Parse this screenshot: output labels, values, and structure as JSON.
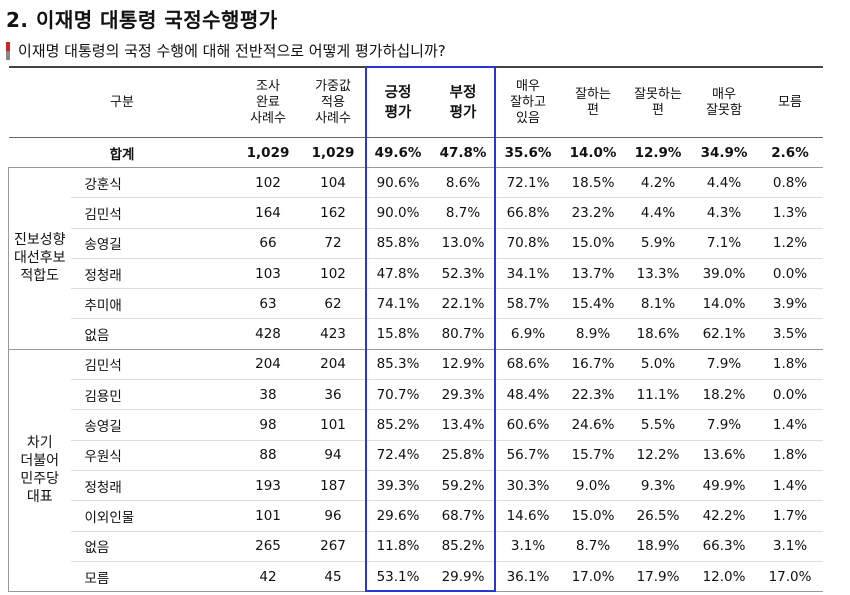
{
  "title": "2. 이재명 대통령 국정수행평가",
  "question": "이재명 대통령의 국정 수행에 대해 전반적으로 어떻게 평가하십니까?",
  "table": {
    "header": [
      "구분",
      "조사\n완료\n사례수",
      "가중값\n적용\n사례수",
      "긍정\n평가",
      "부정\n평가",
      "매우\n잘하고\n있음",
      "잘하는\n편",
      "잘못하는\n편",
      "매우\n잘못함",
      "모름"
    ],
    "total": {
      "label": "합계",
      "values": [
        "1,029",
        "1,029",
        "49.6%",
        "47.8%",
        "35.6%",
        "14.0%",
        "12.9%",
        "34.9%",
        "2.6%"
      ]
    },
    "groups": [
      {
        "label": "진보성향\n대선후보\n적합도",
        "rows": [
          {
            "name": "강훈식",
            "values": [
              "102",
              "104",
              "90.6%",
              "8.6%",
              "72.1%",
              "18.5%",
              "4.2%",
              "4.4%",
              "0.8%"
            ]
          },
          {
            "name": "김민석",
            "values": [
              "164",
              "162",
              "90.0%",
              "8.7%",
              "66.8%",
              "23.2%",
              "4.4%",
              "4.3%",
              "1.3%"
            ]
          },
          {
            "name": "송영길",
            "values": [
              "66",
              "72",
              "85.8%",
              "13.0%",
              "70.8%",
              "15.0%",
              "5.9%",
              "7.1%",
              "1.2%"
            ]
          },
          {
            "name": "정청래",
            "values": [
              "103",
              "102",
              "47.8%",
              "52.3%",
              "34.1%",
              "13.7%",
              "13.3%",
              "39.0%",
              "0.0%"
            ]
          },
          {
            "name": "추미애",
            "values": [
              "63",
              "62",
              "74.1%",
              "22.1%",
              "58.7%",
              "15.4%",
              "8.1%",
              "14.0%",
              "3.9%"
            ]
          },
          {
            "name": "없음",
            "values": [
              "428",
              "423",
              "15.8%",
              "80.7%",
              "6.9%",
              "8.9%",
              "18.6%",
              "62.1%",
              "3.5%"
            ]
          }
        ]
      },
      {
        "label": "차기\n더불어\n민주당\n대표",
        "rows": [
          {
            "name": "김민석",
            "values": [
              "204",
              "204",
              "85.3%",
              "12.9%",
              "68.6%",
              "16.7%",
              "5.0%",
              "7.9%",
              "1.8%"
            ]
          },
          {
            "name": "김용민",
            "values": [
              "38",
              "36",
              "70.7%",
              "29.3%",
              "48.4%",
              "22.3%",
              "11.1%",
              "18.2%",
              "0.0%"
            ]
          },
          {
            "name": "송영길",
            "values": [
              "98",
              "101",
              "85.2%",
              "13.4%",
              "60.6%",
              "24.6%",
              "5.5%",
              "7.9%",
              "1.4%"
            ]
          },
          {
            "name": "우원식",
            "values": [
              "88",
              "94",
              "72.4%",
              "25.8%",
              "56.7%",
              "15.7%",
              "12.2%",
              "13.6%",
              "1.8%"
            ]
          },
          {
            "name": "정청래",
            "values": [
              "193",
              "187",
              "39.3%",
              "59.2%",
              "30.3%",
              "9.0%",
              "9.3%",
              "49.9%",
              "1.4%"
            ]
          },
          {
            "name": "이외인물",
            "values": [
              "101",
              "96",
              "29.6%",
              "68.7%",
              "14.6%",
              "15.0%",
              "26.5%",
              "42.2%",
              "1.7%"
            ]
          },
          {
            "name": "없음",
            "values": [
              "265",
              "267",
              "11.8%",
              "85.2%",
              "3.1%",
              "8.7%",
              "18.9%",
              "66.3%",
              "3.1%"
            ]
          },
          {
            "name": "모름",
            "values": [
              "42",
              "45",
              "53.1%",
              "29.9%",
              "36.1%",
              "17.0%",
              "17.9%",
              "12.0%",
              "17.0%"
            ]
          }
        ]
      }
    ]
  }
}
